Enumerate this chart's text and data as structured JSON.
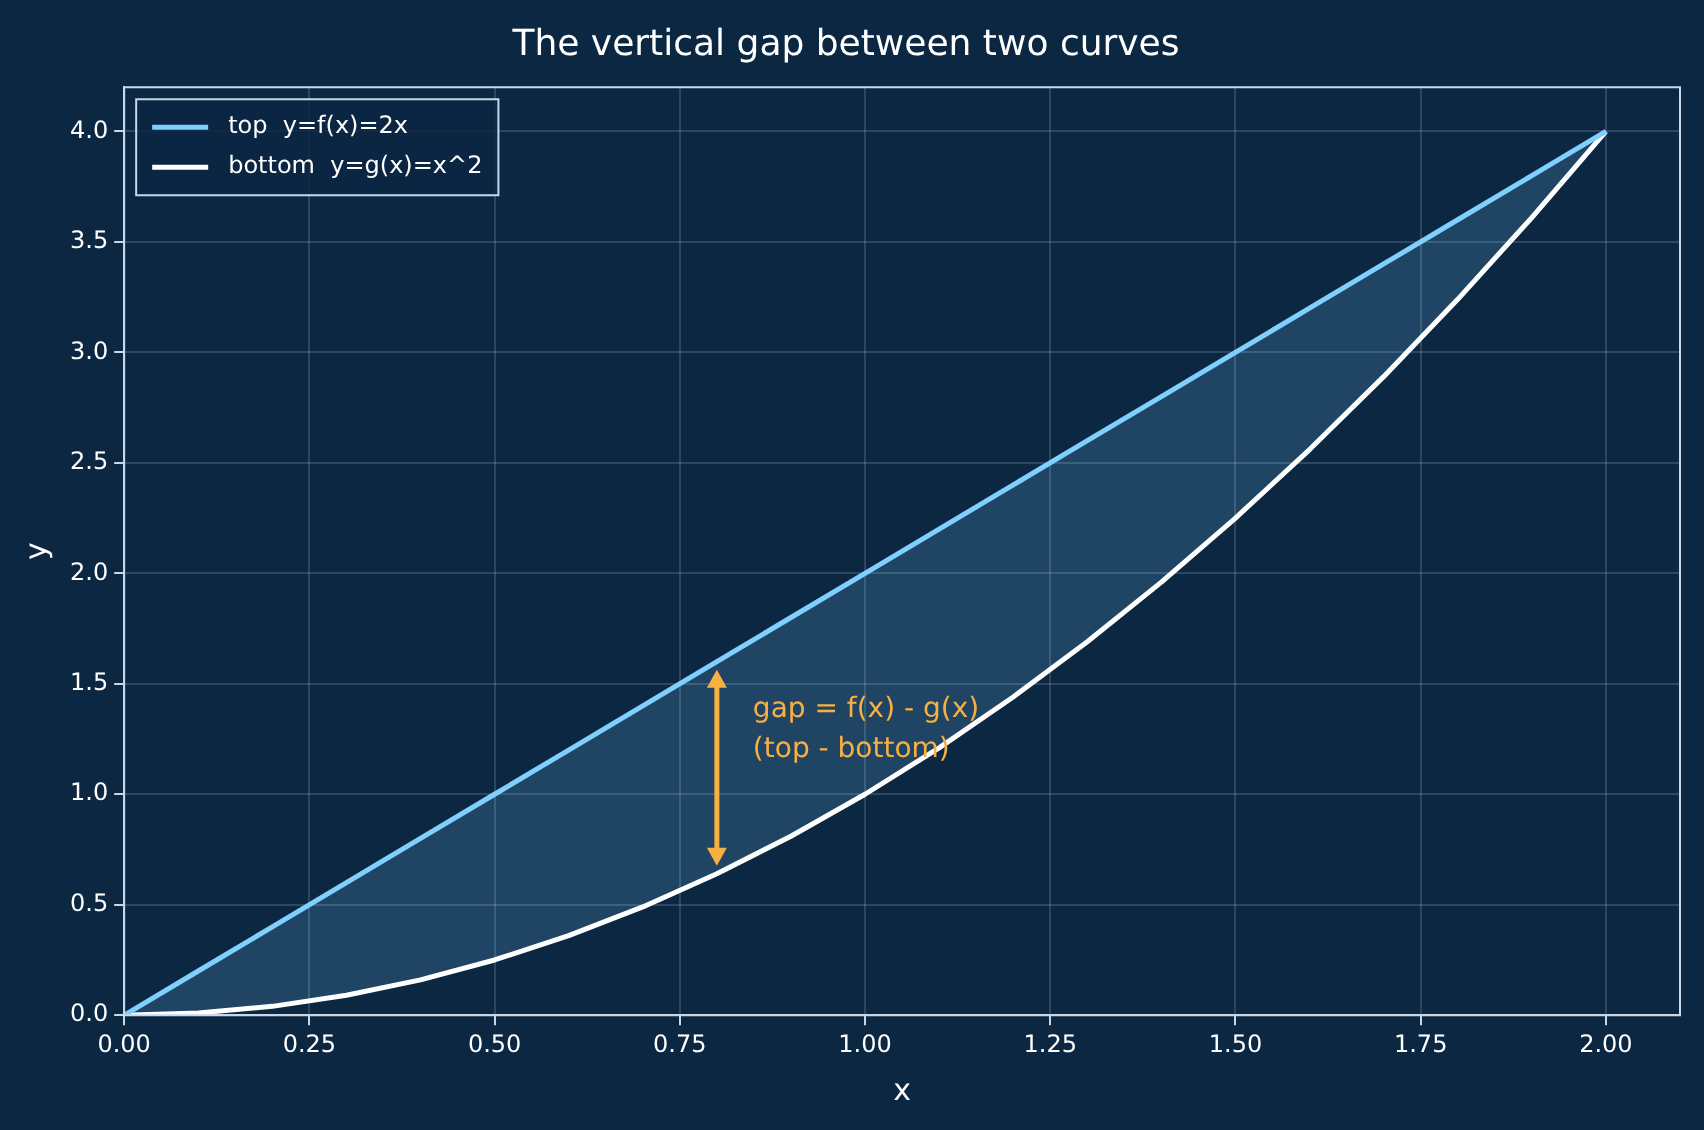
{
  "chart_data": {
    "type": "line",
    "title": "The vertical gap between two curves",
    "xlabel": "x",
    "ylabel": "y",
    "x": [
      0,
      0.1,
      0.2,
      0.3,
      0.4,
      0.5,
      0.6,
      0.7,
      0.8,
      0.9,
      1.0,
      1.1,
      1.2,
      1.3,
      1.4,
      1.5,
      1.6,
      1.7,
      1.8,
      1.9,
      2.0
    ],
    "series": [
      {
        "name": "top  y=f(x)=2x",
        "color": "#7fd0ff",
        "values": [
          0,
          0.2,
          0.4,
          0.6,
          0.8,
          1.0,
          1.2,
          1.4,
          1.6,
          1.8,
          2.0,
          2.2,
          2.4,
          2.6,
          2.8,
          3.0,
          3.2,
          3.4,
          3.6,
          3.8,
          4.0
        ],
        "lower": [
          0,
          0.01,
          0.04,
          0.09,
          0.16,
          0.25,
          0.36,
          0.49,
          0.64,
          0.81,
          1.0,
          1.21,
          1.44,
          1.69,
          1.96,
          2.25,
          2.56,
          2.89,
          3.24,
          3.61,
          4.0
        ],
        "upper": [
          0,
          0.2,
          0.4,
          0.6,
          0.8,
          1.0,
          1.2,
          1.4,
          1.6,
          1.8,
          2.0,
          2.2,
          2.4,
          2.6,
          2.8,
          3.0,
          3.2,
          3.4,
          3.6,
          3.8,
          4.0
        ]
      },
      {
        "name": "bottom  y=g(x)=x^2",
        "color": "#ffffff",
        "values": [
          0,
          0.01,
          0.04,
          0.09,
          0.16,
          0.25,
          0.36,
          0.49,
          0.64,
          0.81,
          1.0,
          1.21,
          1.44,
          1.69,
          1.96,
          2.25,
          2.56,
          2.89,
          3.24,
          3.61,
          4.0
        ]
      }
    ],
    "annotations": [
      {
        "text": "gap = f(x) - g(x)",
        "x": 0.8,
        "y": 1.6
      },
      "(top - bottom)"
    ],
    "xlim": [
      0,
      2.1
    ],
    "ylim": [
      0,
      4.2
    ],
    "xticks": [
      {
        "value": 0,
        "label": "0.00"
      },
      {
        "value": 0.25,
        "label": "0.25"
      },
      {
        "value": 0.5,
        "label": "0.50"
      },
      {
        "value": 0.75,
        "label": "0.75"
      },
      {
        "value": 1,
        "label": "1.00"
      },
      {
        "value": 1.25,
        "label": "1.25"
      },
      {
        "value": 1.5,
        "label": "1.50"
      },
      {
        "value": 1.75,
        "label": "1.75"
      },
      {
        "value": 2,
        "label": "2.00"
      }
    ],
    "yticks": [
      {
        "value": 0,
        "label": "0.0"
      },
      0.5,
      {
        "value": 1,
        "label": "1.0"
      },
      1.5,
      {
        "value": 2,
        "label": "2.0"
      },
      2.5,
      {
        "value": 3,
        "label": "3.0"
      },
      3.5,
      {
        "value": 4,
        "label": "4.0"
      }
    ],
    "grid": true,
    "legend": "top left",
    "marker": "none",
    "line_style": "solid"
  }
}
